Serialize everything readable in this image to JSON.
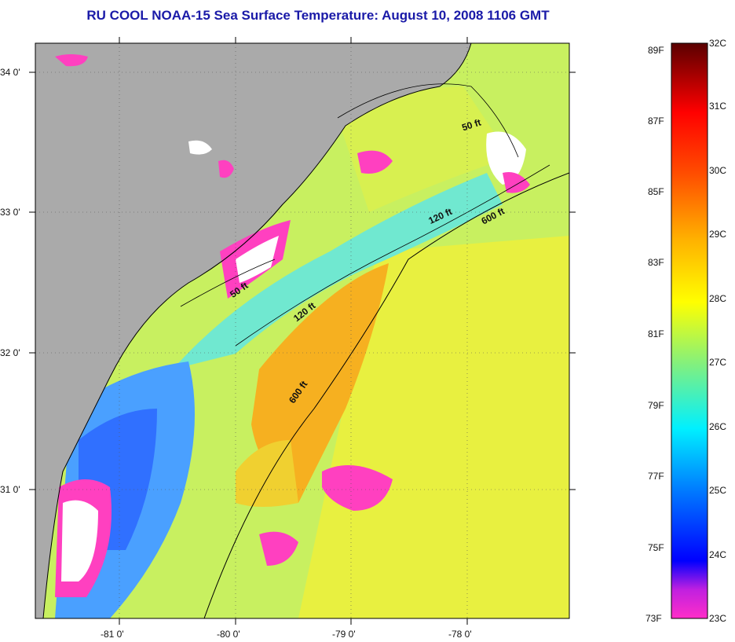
{
  "title": "RU COOL  NOAA-15  Sea Surface Temperature:  August 10, 2008 1106 GMT",
  "map": {
    "lat_labels": [
      "34 0'",
      "33 0'",
      "32 0'",
      "31 0'"
    ],
    "lon_labels": [
      "-81 0'",
      "-80 0'",
      "-79 0'",
      "-78 0'"
    ],
    "contour_labels": [
      "50 ft",
      "120 ft",
      "600 ft",
      "50 ft",
      "120 ft",
      "600 ft"
    ]
  },
  "colorbar": {
    "fahrenheit": [
      "89F",
      "87F",
      "85F",
      "83F",
      "81F",
      "79F",
      "77F",
      "75F",
      "73F"
    ],
    "celsius": [
      "32C",
      "31C",
      "30C",
      "29C",
      "28C",
      "27C",
      "26C",
      "25C",
      "24C",
      "23C"
    ],
    "colors": [
      "#ff2ec8",
      "#8a2be2",
      "#0000ff",
      "#0080ff",
      "#00e0ff",
      "#40f0c0",
      "#a0f050",
      "#ffff00",
      "#ffb000",
      "#ff6000",
      "#ff0000",
      "#6b0000"
    ]
  },
  "colors": {
    "land": "#aaaaaa",
    "cloud": "#ffffff",
    "title": "#1a1aa8"
  }
}
